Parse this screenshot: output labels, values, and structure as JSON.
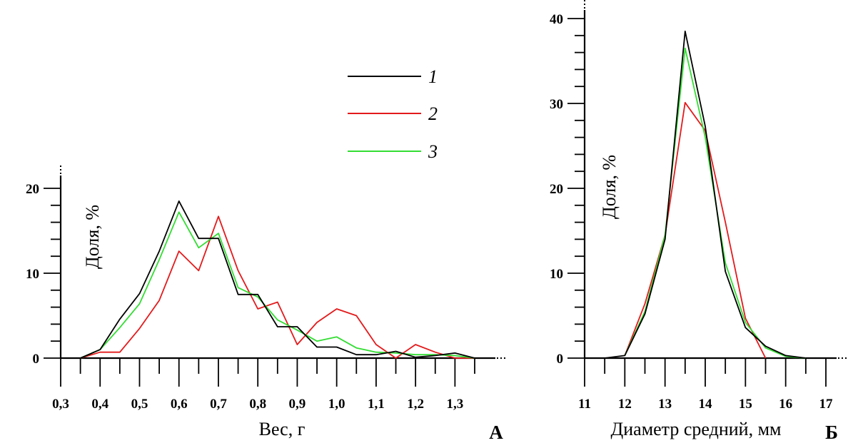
{
  "chart_data": [
    {
      "type": "line",
      "panel_label": "А",
      "xlabel": "Вес, г",
      "ylabel": "Доля, %",
      "xlim": [
        0.3,
        1.35
      ],
      "ylim": [
        0,
        20
      ],
      "x_ticks": [
        "0,3",
        "0,4",
        "0,5",
        "0,6",
        "0,7",
        "0,8",
        "0,9",
        "1,0",
        "1,1",
        "1,2",
        "1,3"
      ],
      "x_tick_values": [
        0.3,
        0.4,
        0.5,
        0.6,
        0.7,
        0.8,
        0.9,
        1.0,
        1.1,
        1.2,
        1.3
      ],
      "y_ticks": [
        "0",
        "10",
        "20"
      ],
      "y_tick_values": [
        0,
        10,
        20
      ],
      "series": [
        {
          "name": "1",
          "color": "#000000",
          "x": [
            0.35,
            0.4,
            0.45,
            0.5,
            0.55,
            0.6,
            0.65,
            0.7,
            0.75,
            0.8,
            0.85,
            0.9,
            0.95,
            1.0,
            1.05,
            1.1,
            1.15,
            1.2,
            1.25,
            1.3,
            1.35
          ],
          "y": [
            0,
            1,
            4.6,
            7.6,
            12.6,
            18.5,
            14.1,
            14.1,
            7.5,
            7.5,
            3.7,
            3.7,
            1.3,
            1.3,
            0.4,
            0.4,
            0.8,
            0.1,
            0.3,
            0.6,
            0
          ]
        },
        {
          "name": "2",
          "color": "#e31a1c",
          "x": [
            0.35,
            0.4,
            0.45,
            0.5,
            0.55,
            0.6,
            0.65,
            0.7,
            0.75,
            0.8,
            0.85,
            0.9,
            0.95,
            1.0,
            1.05,
            1.1,
            1.15,
            1.2,
            1.25,
            1.3,
            1.35
          ],
          "y": [
            0,
            0.7,
            0.7,
            3.5,
            6.8,
            12.6,
            10.3,
            16.7,
            10.3,
            5.8,
            6.6,
            1.6,
            4.2,
            5.8,
            5,
            1.6,
            0,
            1.6,
            0.7,
            0,
            0
          ]
        },
        {
          "name": "3",
          "color": "#33dd33",
          "x": [
            0.35,
            0.4,
            0.45,
            0.5,
            0.55,
            0.6,
            0.65,
            0.7,
            0.75,
            0.8,
            0.85,
            0.9,
            0.95,
            1.0,
            1.05,
            1.1,
            1.15,
            1.2,
            1.25,
            1.3,
            1.35
          ],
          "y": [
            0,
            1,
            3.6,
            6.4,
            11.6,
            17.2,
            13,
            14.7,
            8.3,
            7.2,
            4.5,
            3.3,
            2,
            2.5,
            1.2,
            0.7,
            0.6,
            0.4,
            0.4,
            0.3,
            0
          ]
        }
      ],
      "legend": {
        "placement": "top-right",
        "entries": [
          "1",
          "2",
          "3"
        ]
      }
    },
    {
      "type": "line",
      "panel_label": "Б",
      "xlabel": "Диаметр средний, мм",
      "ylabel": "Доля, %",
      "xlim": [
        11,
        17
      ],
      "ylim": [
        0,
        40
      ],
      "x_ticks": [
        "11",
        "12",
        "13",
        "14",
        "15",
        "16",
        "17"
      ],
      "x_tick_values": [
        11,
        12,
        13,
        14,
        15,
        16,
        17
      ],
      "y_ticks": [
        "0",
        "10",
        "20",
        "30",
        "40"
      ],
      "y_tick_values": [
        0,
        10,
        20,
        30,
        40
      ],
      "series": [
        {
          "name": "1",
          "color": "#000000",
          "x": [
            11.5,
            12,
            12.5,
            13,
            13.5,
            14,
            14.5,
            15,
            15.5,
            16,
            16.5
          ],
          "y": [
            0,
            0.3,
            5.2,
            14,
            38.5,
            27.3,
            10.2,
            3.6,
            1.4,
            0.3,
            0
          ]
        },
        {
          "name": "2",
          "color": "#e31a1c",
          "x": [
            12,
            12.5,
            13,
            13.5,
            14,
            14.5,
            15,
            15.5
          ],
          "y": [
            0.3,
            6.4,
            14.5,
            30.1,
            26.8,
            16,
            4.7,
            0
          ]
        },
        {
          "name": "3",
          "color": "#33dd33",
          "x": [
            12,
            12.5,
            13,
            13.5,
            14,
            14.5,
            15,
            15.5,
            16,
            16.5
          ],
          "y": [
            0.3,
            5.5,
            14.5,
            36.5,
            26,
            11.2,
            4.2,
            1.2,
            0.2,
            0
          ]
        }
      ]
    }
  ]
}
